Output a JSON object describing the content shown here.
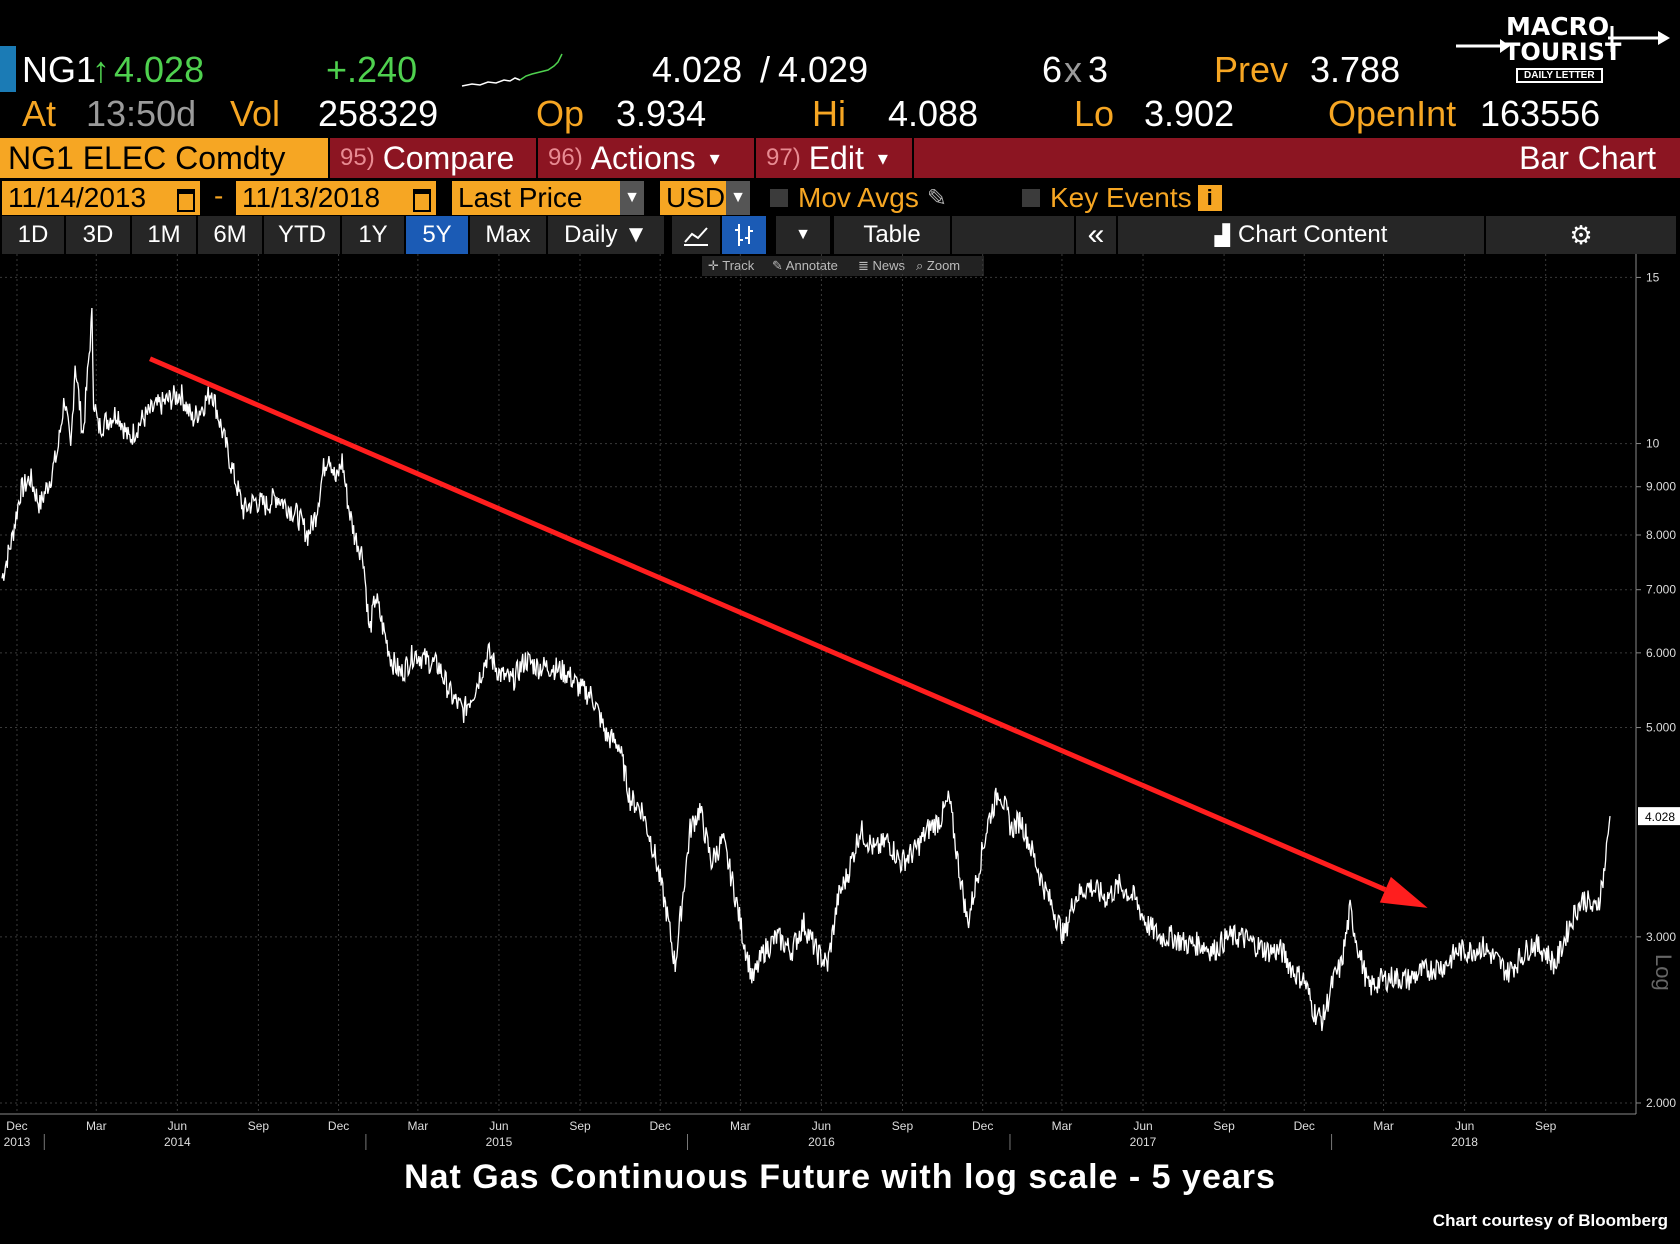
{
  "quote": {
    "ticker": "NG1",
    "arrow": "↑",
    "last": "4.028",
    "change": "+.240",
    "bid_ask": "4.028",
    "slash": "/",
    "ask": "4.029",
    "size_a": "6",
    "size_x": "x",
    "size_b": "3",
    "prev_label": "Prev",
    "prev": "3.788",
    "at_label": "At",
    "time": "13:50d",
    "vol_label": "Vol",
    "vol": "258329",
    "op_label": "Op",
    "op": "3.934",
    "hi_label": "Hi",
    "hi": "4.088",
    "lo_label": "Lo",
    "lo": "3.902",
    "openint_label": "OpenInt",
    "openint": "163556"
  },
  "logo": {
    "line1": "MACRO",
    "line2": "TOURIST",
    "line3": "DAILY LETTER"
  },
  "toolbar": {
    "security": "NG1 ELEC Comdty",
    "compare_num": "95)",
    "compare": "Compare",
    "actions_num": "96)",
    "actions": "Actions",
    "edit_num": "97)",
    "edit": "Edit",
    "chart_type": "Bar Chart",
    "caret": "▾"
  },
  "settings": {
    "start_date": "11/14/2013",
    "dash": "-",
    "end_date": "11/13/2018",
    "field": "Last Price",
    "currency": "USD",
    "mov_avgs": "Mov Avgs",
    "key_events": "Key Events",
    "info": "i"
  },
  "timeframes": [
    "1D",
    "3D",
    "1M",
    "6M",
    "YTD",
    "1Y",
    "5Y",
    "Max"
  ],
  "active_timeframe": "5Y",
  "periodicity": "Daily ▼",
  "table_label": "Table",
  "chart_content": "Chart Content",
  "mini_tools": [
    "✛ Track",
    "✎ Annotate",
    "≣ News",
    "⌕ Zoom"
  ],
  "colors": {
    "accent": "#f6a623",
    "red_bar": "#8c1522",
    "trend": "#ff1e1e",
    "up": "#4fd14f",
    "active_tab": "#1b5bb5"
  },
  "chart_data": {
    "type": "line",
    "title": "",
    "y_scale": "log",
    "ylabel": "Log",
    "ylim": [
      1.9,
      15.5
    ],
    "x_range": [
      "2013-11-14",
      "2018-11-13"
    ],
    "y_ticks": [
      "15",
      "10",
      "9.000",
      "8.000",
      "7.000",
      "6.000",
      "5.000",
      "4.028",
      "3.000",
      "2.000"
    ],
    "last_value_label": "4.028",
    "x_month_ticks": [
      {
        "date": "2013-12-01",
        "label": "Dec"
      },
      {
        "date": "2014-03-01",
        "label": "Mar"
      },
      {
        "date": "2014-06-01",
        "label": "Jun"
      },
      {
        "date": "2014-09-01",
        "label": "Sep"
      },
      {
        "date": "2014-12-01",
        "label": "Dec"
      },
      {
        "date": "2015-03-01",
        "label": "Mar"
      },
      {
        "date": "2015-06-01",
        "label": "Jun"
      },
      {
        "date": "2015-09-01",
        "label": "Sep"
      },
      {
        "date": "2015-12-01",
        "label": "Dec"
      },
      {
        "date": "2016-03-01",
        "label": "Mar"
      },
      {
        "date": "2016-06-01",
        "label": "Jun"
      },
      {
        "date": "2016-09-01",
        "label": "Sep"
      },
      {
        "date": "2016-12-01",
        "label": "Dec"
      },
      {
        "date": "2017-03-01",
        "label": "Mar"
      },
      {
        "date": "2017-06-01",
        "label": "Jun"
      },
      {
        "date": "2017-09-01",
        "label": "Sep"
      },
      {
        "date": "2017-12-01",
        "label": "Dec"
      },
      {
        "date": "2018-03-01",
        "label": "Mar"
      },
      {
        "date": "2018-06-01",
        "label": "Jun"
      },
      {
        "date": "2018-09-01",
        "label": "Sep"
      }
    ],
    "x_year_labels": [
      {
        "date": "2013-12-01",
        "label": "2013"
      },
      {
        "date": "2014-06-01",
        "label": "2014"
      },
      {
        "date": "2015-06-01",
        "label": "2015"
      },
      {
        "date": "2016-06-01",
        "label": "2016"
      },
      {
        "date": "2017-06-01",
        "label": "2017"
      },
      {
        "date": "2018-06-01",
        "label": "2018"
      }
    ],
    "series": [
      {
        "color": "#ffffff",
        "points": [
          [
            "2013-11-14",
            7.2
          ],
          [
            "2013-11-25",
            7.9
          ],
          [
            "2013-12-05",
            8.9
          ],
          [
            "2013-12-16",
            9.2
          ],
          [
            "2013-12-27",
            8.6
          ],
          [
            "2014-01-08",
            9.2
          ],
          [
            "2014-01-16",
            9.8
          ],
          [
            "2014-01-24",
            11.2
          ],
          [
            "2014-01-31",
            9.8
          ],
          [
            "2014-02-05",
            12.2
          ],
          [
            "2014-02-10",
            11.0
          ],
          [
            "2014-02-14",
            10.2
          ],
          [
            "2014-02-24",
            13.6
          ],
          [
            "2014-02-26",
            11.2
          ],
          [
            "2014-03-03",
            10.4
          ],
          [
            "2014-03-14",
            10.6
          ],
          [
            "2014-03-25",
            10.8
          ],
          [
            "2014-04-07",
            10.1
          ],
          [
            "2014-04-22",
            10.6
          ],
          [
            "2014-05-06",
            10.9
          ],
          [
            "2014-05-20",
            11.1
          ],
          [
            "2014-06-05",
            11.3
          ],
          [
            "2014-06-18",
            10.6
          ],
          [
            "2014-07-01",
            11.0
          ],
          [
            "2014-07-10",
            11.4
          ],
          [
            "2014-07-22",
            10.3
          ],
          [
            "2014-08-05",
            9.2
          ],
          [
            "2014-08-15",
            8.5
          ],
          [
            "2014-08-28",
            8.7
          ],
          [
            "2014-09-10",
            8.6
          ],
          [
            "2014-09-22",
            8.8
          ],
          [
            "2014-10-03",
            8.6
          ],
          [
            "2014-10-15",
            8.4
          ],
          [
            "2014-10-27",
            8.0
          ],
          [
            "2014-11-05",
            8.4
          ],
          [
            "2014-11-14",
            9.4
          ],
          [
            "2014-11-20",
            9.8
          ],
          [
            "2014-11-28",
            9.1
          ],
          [
            "2014-12-05",
            9.6
          ],
          [
            "2014-12-12",
            8.6
          ],
          [
            "2014-12-19",
            8.0
          ],
          [
            "2014-12-29",
            7.6
          ],
          [
            "2015-01-05",
            6.3
          ],
          [
            "2015-01-12",
            6.9
          ],
          [
            "2015-01-20",
            6.4
          ],
          [
            "2015-01-30",
            5.9
          ],
          [
            "2015-02-10",
            5.7
          ],
          [
            "2015-02-25",
            6.0
          ],
          [
            "2015-03-10",
            5.9
          ],
          [
            "2015-03-25",
            5.8
          ],
          [
            "2015-04-08",
            5.4
          ],
          [
            "2015-04-22",
            5.2
          ],
          [
            "2015-05-05",
            5.5
          ],
          [
            "2015-05-20",
            6.0
          ],
          [
            "2015-06-02",
            5.7
          ],
          [
            "2015-06-16",
            5.6
          ],
          [
            "2015-07-01",
            5.9
          ],
          [
            "2015-07-15",
            5.8
          ],
          [
            "2015-08-01",
            5.8
          ],
          [
            "2015-08-18",
            5.7
          ],
          [
            "2015-09-01",
            5.5
          ],
          [
            "2015-09-15",
            5.4
          ],
          [
            "2015-10-01",
            4.9
          ],
          [
            "2015-10-15",
            4.8
          ],
          [
            "2015-10-28",
            4.2
          ],
          [
            "2015-11-10",
            4.1
          ],
          [
            "2015-11-24",
            3.7
          ],
          [
            "2015-12-08",
            3.2
          ],
          [
            "2015-12-18",
            2.8
          ],
          [
            "2016-01-04",
            3.9
          ],
          [
            "2016-01-15",
            4.1
          ],
          [
            "2016-01-28",
            3.6
          ],
          [
            "2016-02-10",
            3.8
          ],
          [
            "2016-02-22",
            3.4
          ],
          [
            "2016-03-04",
            3.0
          ],
          [
            "2016-03-15",
            2.7
          ],
          [
            "2016-03-28",
            2.9
          ],
          [
            "2016-04-12",
            3.0
          ],
          [
            "2016-04-28",
            2.9
          ],
          [
            "2016-05-12",
            3.1
          ],
          [
            "2016-05-26",
            2.9
          ],
          [
            "2016-06-08",
            2.8
          ],
          [
            "2016-06-20",
            3.3
          ],
          [
            "2016-07-01",
            3.5
          ],
          [
            "2016-07-15",
            3.9
          ],
          [
            "2016-08-01",
            3.7
          ],
          [
            "2016-08-15",
            3.8
          ],
          [
            "2016-08-30",
            3.6
          ],
          [
            "2016-09-15",
            3.7
          ],
          [
            "2016-09-30",
            3.9
          ],
          [
            "2016-10-14",
            4.0
          ],
          [
            "2016-10-24",
            4.2
          ],
          [
            "2016-11-03",
            3.6
          ],
          [
            "2016-11-14",
            3.1
          ],
          [
            "2016-11-28",
            3.6
          ],
          [
            "2016-12-08",
            4.0
          ],
          [
            "2016-12-20",
            4.3
          ],
          [
            "2017-01-03",
            3.9
          ],
          [
            "2017-01-13",
            4.0
          ],
          [
            "2017-01-26",
            3.7
          ],
          [
            "2017-02-08",
            3.4
          ],
          [
            "2017-02-20",
            3.2
          ],
          [
            "2017-03-03",
            3.0
          ],
          [
            "2017-03-15",
            3.3
          ],
          [
            "2017-04-01",
            3.4
          ],
          [
            "2017-04-20",
            3.3
          ],
          [
            "2017-05-05",
            3.4
          ],
          [
            "2017-05-22",
            3.3
          ],
          [
            "2017-06-05",
            3.1
          ],
          [
            "2017-06-20",
            3.0
          ],
          [
            "2017-07-05",
            3.0
          ],
          [
            "2017-07-20",
            2.95
          ],
          [
            "2017-08-05",
            2.95
          ],
          [
            "2017-08-20",
            2.9
          ],
          [
            "2017-09-05",
            3.0
          ],
          [
            "2017-09-20",
            3.0
          ],
          [
            "2017-10-05",
            2.95
          ],
          [
            "2017-10-20",
            2.9
          ],
          [
            "2017-11-05",
            2.9
          ],
          [
            "2017-11-20",
            2.75
          ],
          [
            "2017-12-01",
            2.7
          ],
          [
            "2017-12-12",
            2.5
          ],
          [
            "2017-12-22",
            2.45
          ],
          [
            "2018-01-03",
            2.7
          ],
          [
            "2018-01-12",
            2.8
          ],
          [
            "2018-01-22",
            3.2
          ],
          [
            "2018-02-01",
            2.9
          ],
          [
            "2018-02-12",
            2.65
          ],
          [
            "2018-02-26",
            2.7
          ],
          [
            "2018-03-12",
            2.72
          ],
          [
            "2018-03-28",
            2.7
          ],
          [
            "2018-04-12",
            2.75
          ],
          [
            "2018-04-26",
            2.78
          ],
          [
            "2018-05-10",
            2.8
          ],
          [
            "2018-05-24",
            2.9
          ],
          [
            "2018-06-07",
            2.9
          ],
          [
            "2018-06-21",
            2.93
          ],
          [
            "2018-07-05",
            2.85
          ],
          [
            "2018-07-20",
            2.75
          ],
          [
            "2018-08-03",
            2.85
          ],
          [
            "2018-08-17",
            2.95
          ],
          [
            "2018-08-31",
            2.9
          ],
          [
            "2018-09-12",
            2.8
          ],
          [
            "2018-09-26",
            3.05
          ],
          [
            "2018-10-05",
            3.2
          ],
          [
            "2018-10-15",
            3.3
          ],
          [
            "2018-10-26",
            3.2
          ],
          [
            "2018-11-01",
            3.3
          ],
          [
            "2018-11-06",
            3.5
          ],
          [
            "2018-11-09",
            3.7
          ],
          [
            "2018-11-13",
            4.028
          ]
        ]
      }
    ],
    "annotations": [
      {
        "type": "arrow",
        "color": "#ff1e1e",
        "from": [
          "2014-05-01",
          12.3
        ],
        "to": [
          "2018-04-20",
          3.22
        ]
      }
    ]
  },
  "caption": "Nat Gas Continuous Future with log scale - 5 years",
  "credit": "Chart courtesy of Bloomberg"
}
